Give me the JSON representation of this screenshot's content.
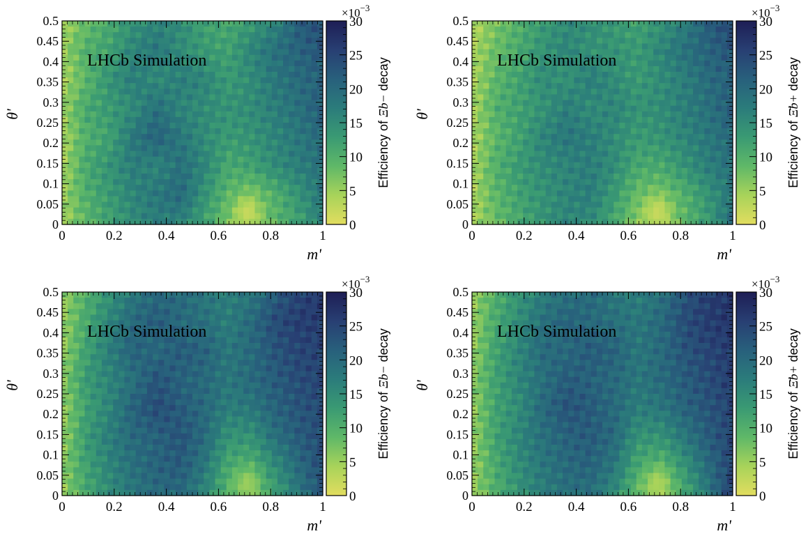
{
  "figure": {
    "annotation": "LHCb Simulation",
    "colorbar_label_prefix": "Efficiency of",
    "colorbar_label_suffix": "decay",
    "colorbar_multiplier_base": "×10",
    "colorbar_multiplier_exp": "−3"
  },
  "palette": {
    "low": "#e2dd5f",
    "stops": [
      "#e2dd5f",
      "#a8d35a",
      "#5fb868",
      "#3a9a73",
      "#2b7c7b",
      "#28607c",
      "#283f73",
      "#1e1e55"
    ]
  },
  "chart_data": [
    {
      "type": "heatmap",
      "panel": "top-left",
      "xlabel": "m'",
      "ylabel": "θ'",
      "xlim": [
        0,
        1
      ],
      "ylim": [
        0,
        0.5
      ],
      "x_ticks": [
        "0",
        "0.2",
        "0.4",
        "0.6",
        "0.8",
        "1"
      ],
      "y_ticks": [
        "0",
        "0.05",
        "0.1",
        "0.15",
        "0.2",
        "0.25",
        "0.3",
        "0.35",
        "0.4",
        "0.45",
        "0.5"
      ],
      "colorbar": {
        "label_particle": "Ξb−",
        "ticks": [
          "0",
          "5",
          "10",
          "15",
          "20",
          "25",
          "30"
        ],
        "range": [
          0,
          30
        ]
      },
      "hotspot": {
        "x": 0.71,
        "y": 0.03,
        "value": 2
      },
      "z_approx": [
        [
          4,
          8,
          11,
          14,
          16,
          15,
          12,
          11,
          13,
          16,
          22,
          24
        ],
        [
          5,
          10,
          12,
          16,
          18,
          15,
          13,
          12,
          16,
          19,
          21,
          23
        ],
        [
          4,
          9,
          14,
          17,
          15,
          17,
          16,
          13,
          15,
          18,
          20,
          21
        ],
        [
          5,
          11,
          13,
          15,
          19,
          16,
          15,
          14,
          15,
          17,
          19,
          22
        ],
        [
          4,
          10,
          12,
          18,
          21,
          18,
          15,
          13,
          14,
          16,
          18,
          20
        ],
        [
          4,
          11,
          14,
          17,
          16,
          19,
          16,
          11,
          12,
          15,
          17,
          19
        ],
        [
          5,
          10,
          13,
          16,
          18,
          20,
          14,
          9,
          7,
          10,
          14,
          18
        ],
        [
          4,
          9,
          12,
          15,
          17,
          16,
          12,
          7,
          5,
          9,
          12,
          17
        ]
      ]
    },
    {
      "type": "heatmap",
      "panel": "top-right",
      "xlabel": "m'",
      "ylabel": "θ'",
      "xlim": [
        0,
        1
      ],
      "ylim": [
        0,
        0.5
      ],
      "x_ticks": [
        "0",
        "0.2",
        "0.4",
        "0.6",
        "0.8",
        "1"
      ],
      "y_ticks": [
        "0",
        "0.05",
        "0.1",
        "0.15",
        "0.2",
        "0.25",
        "0.3",
        "0.35",
        "0.4",
        "0.45",
        "0.5"
      ],
      "colorbar": {
        "label_particle": "Ξ̄b+",
        "ticks": [
          "0",
          "5",
          "10",
          "15",
          "20",
          "25",
          "30"
        ],
        "range": [
          0,
          30
        ]
      },
      "hotspot": {
        "x": 0.71,
        "y": 0.03,
        "value": 2
      },
      "z_approx": [
        [
          3,
          7,
          10,
          13,
          15,
          15,
          13,
          12,
          14,
          17,
          22,
          25
        ],
        [
          4,
          8,
          11,
          14,
          16,
          14,
          14,
          13,
          16,
          19,
          21,
          23
        ],
        [
          4,
          9,
          12,
          15,
          14,
          17,
          15,
          13,
          15,
          17,
          20,
          21
        ],
        [
          4,
          10,
          12,
          14,
          17,
          15,
          16,
          14,
          15,
          17,
          19,
          22
        ],
        [
          4,
          9,
          12,
          16,
          18,
          17,
          15,
          13,
          14,
          16,
          18,
          20
        ],
        [
          4,
          10,
          13,
          15,
          16,
          17,
          15,
          11,
          11,
          14,
          17,
          19
        ],
        [
          4,
          9,
          12,
          14,
          16,
          17,
          13,
          8,
          7,
          10,
          14,
          18
        ],
        [
          4,
          8,
          11,
          14,
          16,
          15,
          11,
          6,
          4,
          9,
          13,
          20
        ]
      ]
    },
    {
      "type": "heatmap",
      "panel": "bottom-left",
      "xlabel": "m'",
      "ylabel": "θ'",
      "xlim": [
        0,
        1
      ],
      "ylim": [
        0,
        0.5
      ],
      "x_ticks": [
        "0",
        "0.2",
        "0.4",
        "0.6",
        "0.8",
        "1"
      ],
      "y_ticks": [
        "0",
        "0.05",
        "0.1",
        "0.15",
        "0.2",
        "0.25",
        "0.3",
        "0.35",
        "0.4",
        "0.45",
        "0.5"
      ],
      "colorbar": {
        "label_particle": "Ξb−",
        "ticks": [
          "0",
          "5",
          "10",
          "15",
          "20",
          "25",
          "30"
        ],
        "range": [
          0,
          30
        ]
      },
      "hotspot": {
        "x": 0.71,
        "y": 0.03,
        "value": 5
      },
      "z_approx": [
        [
          5,
          10,
          14,
          18,
          20,
          20,
          18,
          17,
          18,
          22,
          25,
          27
        ],
        [
          5,
          11,
          16,
          20,
          22,
          20,
          19,
          17,
          20,
          24,
          26,
          26
        ],
        [
          5,
          12,
          17,
          21,
          20,
          22,
          21,
          18,
          20,
          23,
          25,
          25
        ],
        [
          6,
          13,
          16,
          19,
          23,
          21,
          20,
          18,
          20,
          22,
          24,
          25
        ],
        [
          5,
          12,
          16,
          21,
          24,
          22,
          20,
          17,
          18,
          21,
          23,
          24
        ],
        [
          5,
          13,
          17,
          20,
          21,
          23,
          20,
          14,
          14,
          19,
          22,
          24
        ],
        [
          6,
          12,
          16,
          19,
          21,
          22,
          18,
          11,
          10,
          15,
          20,
          24
        ],
        [
          5,
          11,
          15,
          18,
          20,
          20,
          16,
          9,
          7,
          12,
          18,
          23
        ]
      ]
    },
    {
      "type": "heatmap",
      "panel": "bottom-right",
      "xlabel": "m'",
      "ylabel": "θ'",
      "xlim": [
        0,
        1
      ],
      "ylim": [
        0,
        0.5
      ],
      "x_ticks": [
        "0",
        "0.2",
        "0.4",
        "0.6",
        "0.8",
        "1"
      ],
      "y_ticks": [
        "0",
        "0.05",
        "0.1",
        "0.15",
        "0.2",
        "0.25",
        "0.3",
        "0.35",
        "0.4",
        "0.45",
        "0.5"
      ],
      "colorbar": {
        "label_particle": "Ξ̄b+",
        "ticks": [
          "0",
          "5",
          "10",
          "15",
          "20",
          "25",
          "30"
        ],
        "range": [
          0,
          30
        ]
      },
      "hotspot": {
        "x": 0.71,
        "y": 0.03,
        "value": 4
      },
      "z_approx": [
        [
          5,
          10,
          14,
          17,
          19,
          20,
          18,
          17,
          19,
          23,
          26,
          27
        ],
        [
          5,
          11,
          15,
          19,
          21,
          20,
          19,
          18,
          20,
          24,
          26,
          27
        ],
        [
          5,
          12,
          16,
          20,
          20,
          22,
          21,
          18,
          20,
          23,
          25,
          26
        ],
        [
          6,
          12,
          16,
          19,
          22,
          21,
          20,
          18,
          20,
          22,
          24,
          26
        ],
        [
          5,
          12,
          15,
          20,
          23,
          22,
          20,
          17,
          18,
          21,
          23,
          25
        ],
        [
          5,
          12,
          16,
          19,
          21,
          22,
          20,
          14,
          14,
          18,
          22,
          25
        ],
        [
          5,
          11,
          15,
          18,
          20,
          21,
          18,
          11,
          9,
          14,
          20,
          25
        ],
        [
          5,
          10,
          14,
          17,
          19,
          19,
          15,
          8,
          5,
          11,
          18,
          26
        ]
      ]
    }
  ]
}
